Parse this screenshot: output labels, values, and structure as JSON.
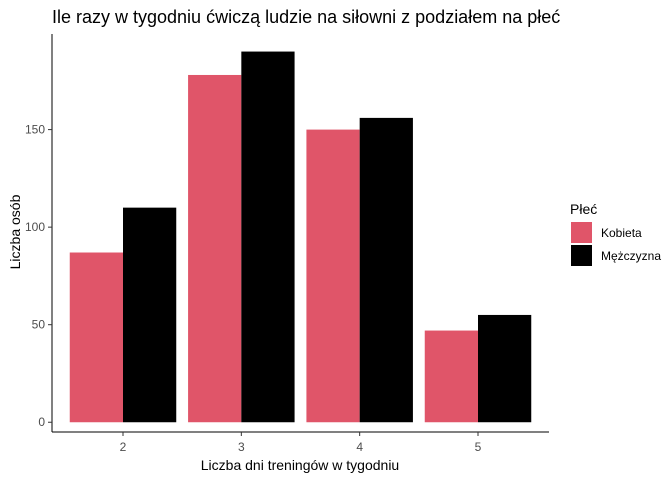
{
  "chart_data": {
    "type": "bar",
    "title": "Ile razy w tygodniu ćwiczą ludzie na siłowni z podziałem na płeć",
    "xlabel": "Liczba dni treningów w tygodniu",
    "ylabel": "Liczba osób",
    "categories": [
      "2",
      "3",
      "4",
      "5"
    ],
    "series": [
      {
        "name": "Kobieta",
        "values": [
          87,
          178,
          150,
          47
        ],
        "color": "#e05569"
      },
      {
        "name": "Mężczyzna",
        "values": [
          110,
          190,
          156,
          55
        ],
        "color": "#000000"
      }
    ],
    "ylim": [
      -5,
      199
    ],
    "yticks": [
      0,
      50,
      100,
      150
    ],
    "legend": {
      "title": "Płeć",
      "position": "right"
    },
    "grid": false
  }
}
